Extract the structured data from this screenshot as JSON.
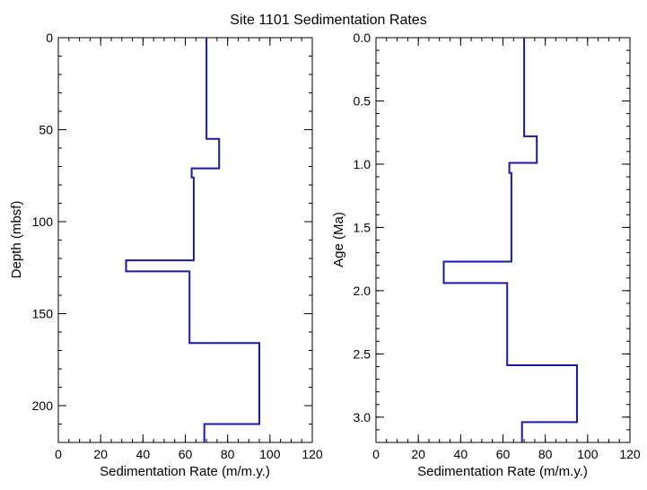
{
  "title": "Site 1101 Sedimentation Rates",
  "chart_data": [
    {
      "type": "line",
      "xlabel": "Sedimentation Rate (m/m.y.)",
      "ylabel": "Depth (mbsf)",
      "xlim": [
        0,
        120
      ],
      "ylim": [
        0,
        220
      ],
      "y_inverted": true,
      "x_ticks": [
        "0",
        "20",
        "40",
        "60",
        "80",
        "100",
        "120"
      ],
      "y_ticks": [
        "0",
        "50",
        "100",
        "150",
        "200"
      ],
      "x_tick_values": [
        0,
        20,
        40,
        60,
        80,
        100,
        120
      ],
      "y_tick_values": [
        0,
        50,
        100,
        150,
        200
      ],
      "line_color": "#1a1aaa",
      "series": [
        {
          "values": [
            [
              70,
              0
            ],
            [
              70,
              55
            ],
            [
              76,
              55
            ],
            [
              76,
              71
            ],
            [
              63,
              71
            ],
            [
              63,
              76
            ],
            [
              64,
              76
            ],
            [
              64,
              121
            ],
            [
              32,
              121
            ],
            [
              32,
              127
            ],
            [
              62,
              127
            ],
            [
              62,
              166
            ],
            [
              95,
              166
            ],
            [
              95,
              210
            ],
            [
              69,
              210
            ],
            [
              69,
              220
            ]
          ]
        }
      ]
    },
    {
      "type": "line",
      "xlabel": "Sedimentation Rate (m/m.y.)",
      "ylabel": "Age (Ma)",
      "xlim": [
        0,
        120
      ],
      "ylim": [
        0,
        3.2
      ],
      "y_inverted": true,
      "x_ticks": [
        "0",
        "20",
        "40",
        "60",
        "80",
        "100",
        "120"
      ],
      "y_ticks": [
        "0.0",
        "0.5",
        "1.0",
        "1.5",
        "2.0",
        "2.5",
        "3.0"
      ],
      "x_tick_values": [
        0,
        20,
        40,
        60,
        80,
        100,
        120
      ],
      "y_tick_values": [
        0,
        0.5,
        1.0,
        1.5,
        2.0,
        2.5,
        3.0
      ],
      "line_color": "#1a1aaa",
      "series": [
        {
          "values": [
            [
              70,
              0
            ],
            [
              70,
              0.78
            ],
            [
              76,
              0.78
            ],
            [
              76,
              0.99
            ],
            [
              63,
              0.99
            ],
            [
              63,
              1.07
            ],
            [
              64,
              1.07
            ],
            [
              64,
              1.77
            ],
            [
              32,
              1.77
            ],
            [
              32,
              1.94
            ],
            [
              62,
              1.94
            ],
            [
              62,
              2.59
            ],
            [
              95,
              2.59
            ],
            [
              95,
              3.04
            ],
            [
              69,
              3.04
            ],
            [
              69,
              3.2
            ]
          ]
        }
      ]
    }
  ]
}
